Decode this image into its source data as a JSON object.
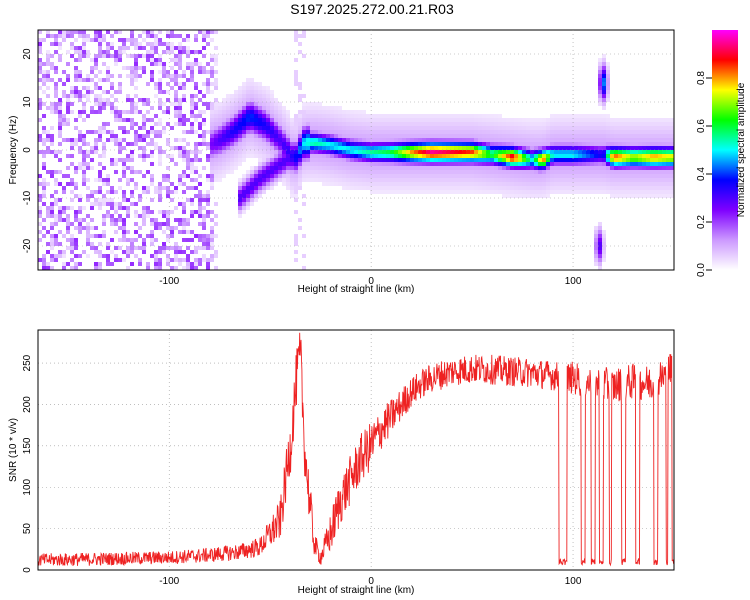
{
  "title": "S197.2025.272.00.21.R03",
  "chart_data": [
    {
      "type": "heatmap",
      "xlabel": "Height of straight line (km)",
      "ylabel": "Frequency (Hz)",
      "xlim": [
        -165,
        150
      ],
      "ylim": [
        -25,
        25
      ],
      "xticks": [
        -100,
        0,
        100
      ],
      "yticks": [
        -20,
        -10,
        0,
        10,
        20
      ],
      "colorbar": {
        "label": "Normalized spectral amplitude",
        "range": [
          0,
          1
        ],
        "ticks": [
          "0.0",
          "0.2",
          "0.4",
          "0.6",
          "0.8"
        ],
        "tick_values": [
          0,
          0.2,
          0.4,
          0.6,
          0.8
        ],
        "colors": [
          "#ffffff",
          "#cc99ff",
          "#7f00ff",
          "#0000ff",
          "#00ffff",
          "#00ff00",
          "#ffff00",
          "#ff0000",
          "#ff00ff"
        ]
      },
      "noise_region_x": [
        -165,
        -80
      ],
      "noise_amplitude": 0.18,
      "ridge": [
        {
          "x": -80,
          "f": 1,
          "a": 0.25
        },
        {
          "x": -75,
          "f": 2,
          "a": 0.3
        },
        {
          "x": -68,
          "f": 4,
          "a": 0.35
        },
        {
          "x": -60,
          "f": 7,
          "a": 0.4
        },
        {
          "x": -52,
          "f": 5,
          "a": 0.35
        },
        {
          "x": -45,
          "f": 2,
          "a": 0.3
        },
        {
          "x": -38,
          "f": -2,
          "a": 0.35
        },
        {
          "x": -33,
          "f": 1.5,
          "a": 0.5
        },
        {
          "x": -28,
          "f": 1.5,
          "a": 0.55
        },
        {
          "x": -20,
          "f": 1,
          "a": 0.5
        },
        {
          "x": -10,
          "f": 0,
          "a": 0.5
        },
        {
          "x": 0,
          "f": -0.5,
          "a": 0.55
        },
        {
          "x": 10,
          "f": -0.5,
          "a": 0.6
        },
        {
          "x": 20,
          "f": -0.5,
          "a": 0.8
        },
        {
          "x": 30,
          "f": -0.5,
          "a": 0.95
        },
        {
          "x": 40,
          "f": -0.5,
          "a": 0.9
        },
        {
          "x": 50,
          "f": -0.5,
          "a": 0.85
        },
        {
          "x": 60,
          "f": -1,
          "a": 0.6
        },
        {
          "x": 70,
          "f": -1.5,
          "a": 0.9
        },
        {
          "x": 80,
          "f": -2,
          "a": 0.5
        },
        {
          "x": 85,
          "f": -2,
          "a": 0.85
        },
        {
          "x": 90,
          "f": -1,
          "a": 0.5
        },
        {
          "x": 100,
          "f": -1,
          "a": 0.5
        },
        {
          "x": 110,
          "f": -1,
          "a": 0.4
        },
        {
          "x": 115,
          "f": -1,
          "a": 0.35
        },
        {
          "x": 120,
          "f": -1.5,
          "a": 0.85
        },
        {
          "x": 130,
          "f": -1.5,
          "a": 0.7
        },
        {
          "x": 140,
          "f": -1.5,
          "a": 0.8
        },
        {
          "x": 148,
          "f": -1.5,
          "a": 0.75
        }
      ],
      "branch": [
        {
          "x": -65,
          "f": -10,
          "a": 0.3
        },
        {
          "x": -55,
          "f": -6,
          "a": 0.3
        },
        {
          "x": -45,
          "f": -3,
          "a": 0.3
        },
        {
          "x": -38,
          "f": -1,
          "a": 0.3
        }
      ],
      "features": [
        {
          "x": 115,
          "f": 14,
          "a": 0.45
        },
        {
          "x": 113,
          "f": -20,
          "a": 0.3
        }
      ]
    },
    {
      "type": "line",
      "xlabel": "Height of straight line (km)",
      "ylabel": "SNR (10 * v/v)",
      "xlim": [
        -165,
        150
      ],
      "ylim": [
        0,
        290
      ],
      "xticks": [
        -100,
        0,
        100
      ],
      "yticks": [
        0,
        50,
        100,
        150,
        200,
        250
      ],
      "line_color": "#ee2222",
      "series": [
        {
          "name": "SNR",
          "x": [
            -165,
            -140,
            -120,
            -100,
            -80,
            -65,
            -55,
            -45,
            -40,
            -37,
            -35,
            -33,
            -30,
            -28,
            -25,
            -20,
            -15,
            -10,
            -5,
            0,
            5,
            10,
            15,
            20,
            25,
            30,
            40,
            50,
            60,
            70,
            80,
            90,
            95,
            100,
            110,
            120,
            130,
            140,
            150
          ],
          "y": [
            12,
            13,
            14,
            15,
            18,
            22,
            28,
            60,
            150,
            230,
            260,
            150,
            70,
            30,
            15,
            45,
            85,
            110,
            135,
            150,
            170,
            185,
            200,
            215,
            225,
            232,
            240,
            243,
            242,
            240,
            238,
            235,
            232,
            232,
            225,
            222,
            228,
            225,
            245
          ],
          "noise": [
            8,
            8,
            8,
            8,
            9,
            10,
            12,
            25,
            35,
            35,
            35,
            35,
            30,
            15,
            10,
            25,
            30,
            30,
            30,
            30,
            25,
            22,
            20,
            18,
            18,
            18,
            18,
            18,
            18,
            18,
            18,
            18,
            18,
            20,
            22,
            22,
            22,
            22,
            22
          ]
        }
      ],
      "dropouts": [
        [
          93,
          97
        ],
        [
          104,
          106
        ],
        [
          109,
          111
        ],
        [
          113,
          115
        ],
        [
          118,
          119
        ],
        [
          124,
          126
        ],
        [
          131,
          133
        ],
        [
          140,
          142
        ],
        [
          146,
          147
        ],
        [
          149,
          150
        ]
      ],
      "dropout_level": 10
    }
  ]
}
